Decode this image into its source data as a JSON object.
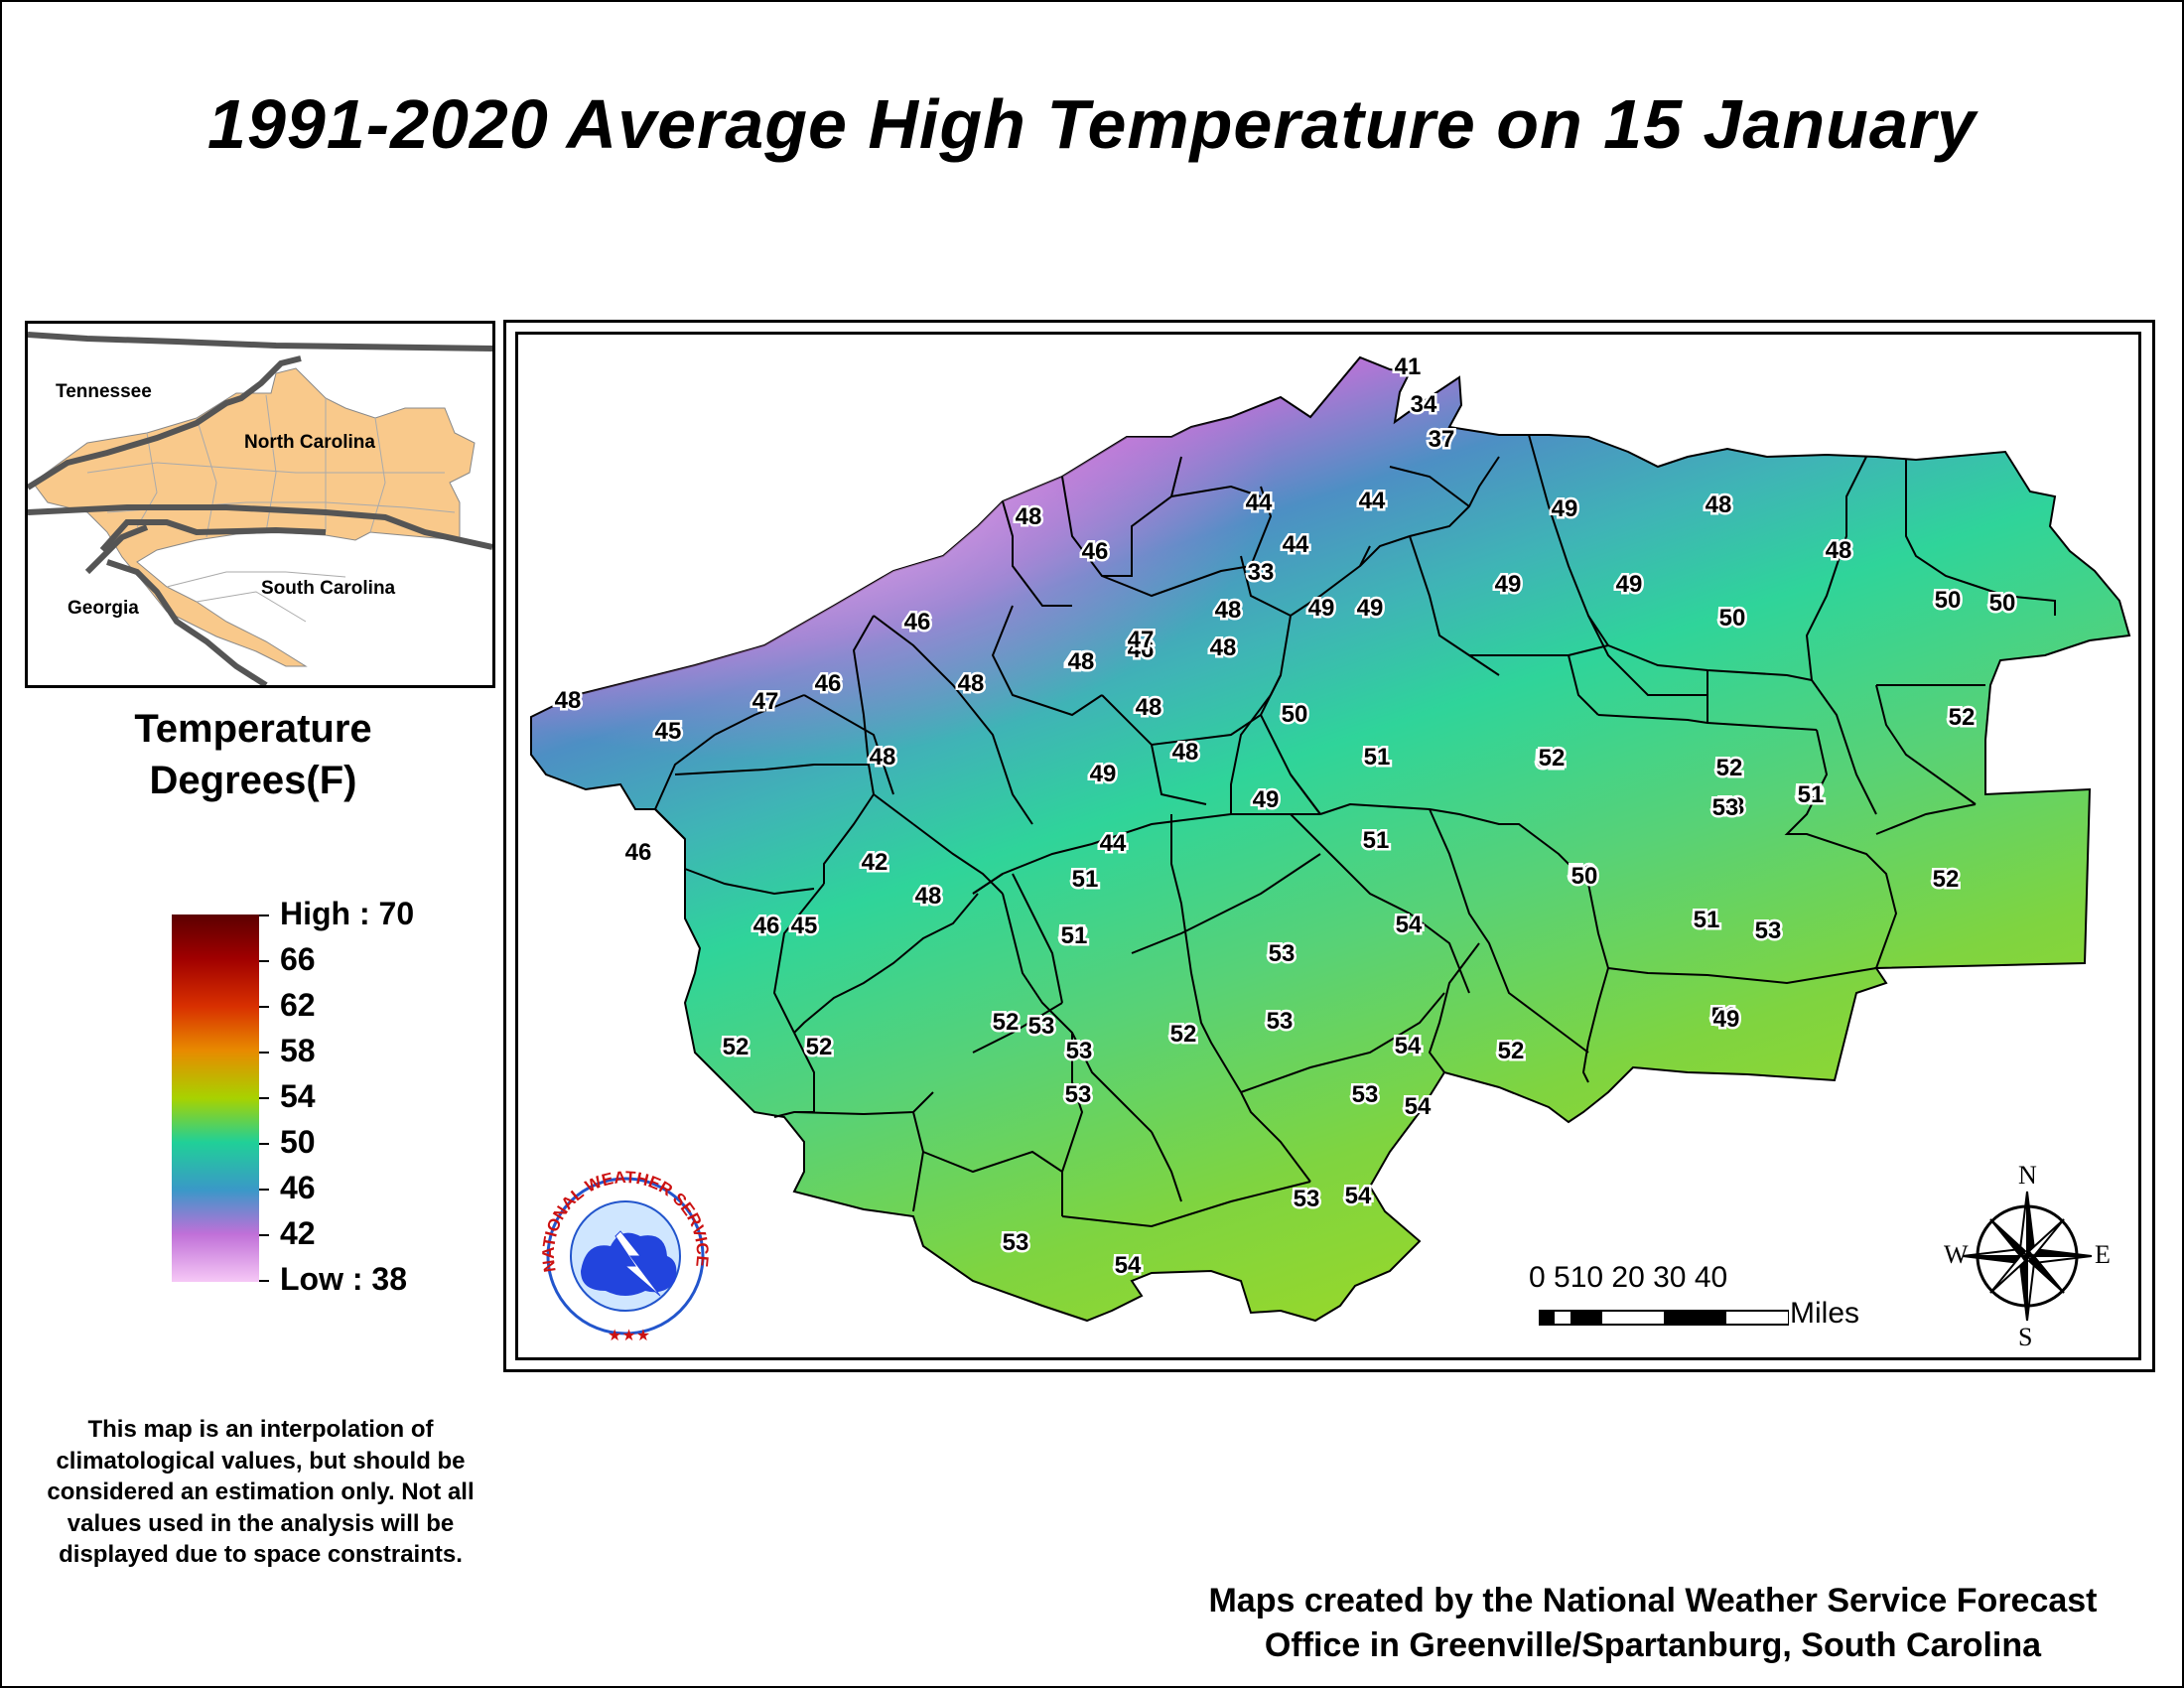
{
  "title": "1991-2020 Average High Temperature on 15 January",
  "inset": {
    "labels": [
      "Tennessee",
      "North Carolina",
      "Georgia",
      "South Carolina"
    ]
  },
  "legend": {
    "title_line1": "Temperature",
    "title_line2": "Degrees(F)",
    "labels": [
      "High : 70",
      "66",
      "62",
      "58",
      "54",
      "50",
      "46",
      "42",
      "Low : 38"
    ]
  },
  "map": {
    "values": [
      {
        "v": "41"
      },
      {
        "v": "34"
      },
      {
        "v": "37"
      },
      {
        "v": "44"
      },
      {
        "v": "44"
      },
      {
        "v": "44"
      },
      {
        "v": "33"
      },
      {
        "v": "49"
      },
      {
        "v": "48"
      },
      {
        "v": "49"
      },
      {
        "v": "48"
      },
      {
        "v": "48"
      },
      {
        "v": "46"
      },
      {
        "v": "48"
      },
      {
        "v": "49"
      },
      {
        "v": "49"
      },
      {
        "v": "49"
      },
      {
        "v": "50"
      },
      {
        "v": "48"
      },
      {
        "v": "50"
      },
      {
        "v": "50"
      },
      {
        "v": "48"
      },
      {
        "v": "46"
      },
      {
        "v": "47"
      },
      {
        "v": "48"
      },
      {
        "v": "48"
      },
      {
        "v": "50"
      },
      {
        "v": "51"
      },
      {
        "v": "52"
      },
      {
        "v": "52"
      },
      {
        "v": "53"
      },
      {
        "v": "52"
      },
      {
        "v": "52"
      },
      {
        "v": "48"
      },
      {
        "v": "45"
      },
      {
        "v": "47"
      },
      {
        "v": "46"
      },
      {
        "v": "46"
      },
      {
        "v": "48"
      },
      {
        "v": "48"
      },
      {
        "v": "49"
      },
      {
        "v": "48"
      },
      {
        "v": "49"
      },
      {
        "v": "51"
      },
      {
        "v": "52"
      },
      {
        "v": "53"
      },
      {
        "v": "51"
      },
      {
        "v": "42"
      },
      {
        "v": "46"
      },
      {
        "v": "44"
      },
      {
        "v": "51"
      },
      {
        "v": "50"
      },
      {
        "v": "52"
      },
      {
        "v": "48"
      },
      {
        "v": "46"
      },
      {
        "v": "45"
      },
      {
        "v": "52"
      },
      {
        "v": "53"
      },
      {
        "v": "54"
      },
      {
        "v": "51"
      },
      {
        "v": "53"
      },
      {
        "v": "50"
      },
      {
        "v": "51"
      },
      {
        "v": "52"
      },
      {
        "v": "53"
      },
      {
        "v": "53"
      },
      {
        "v": "52"
      },
      {
        "v": "53"
      },
      {
        "v": "54"
      },
      {
        "v": "52"
      },
      {
        "v": "51"
      },
      {
        "v": "49"
      },
      {
        "v": "52"
      },
      {
        "v": "53"
      },
      {
        "v": "52"
      },
      {
        "v": "53"
      },
      {
        "v": "54"
      },
      {
        "v": "53"
      },
      {
        "v": "54"
      },
      {
        "v": "53"
      },
      {
        "v": "54"
      }
    ]
  },
  "scale": {
    "ticks": "0 510   20   30   40",
    "unit": "Miles"
  },
  "compass": {
    "n": "N",
    "s": "S",
    "e": "E",
    "w": "W"
  },
  "logo": {
    "text": "NATIONAL WEATHER SERVICE"
  },
  "note": "This map is an interpolation of climatological values, but should be considered an estimation only. Not all values used in the analysis will be displayed due to space constraints.",
  "credit_line1": "Maps created by the National Weather Service Forecast",
  "credit_line2": "Office in Greenville/Spartanburg, South Carolina"
}
